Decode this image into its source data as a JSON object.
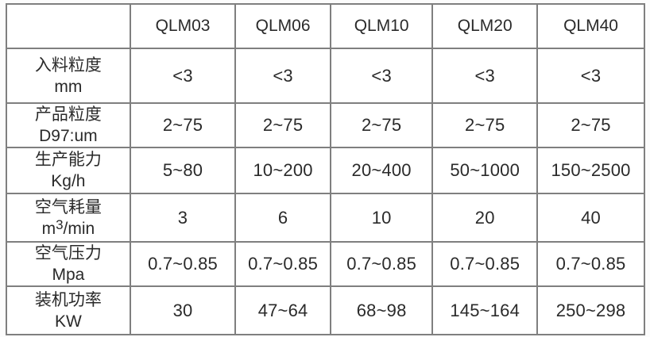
{
  "table": {
    "corner_label": "",
    "models": [
      "QLM03",
      "QLM06",
      "QLM10",
      "QLM20",
      "QLM40"
    ],
    "rows": [
      {
        "label_line1": "入料粒度",
        "label_line2": "mm",
        "values": [
          "<3",
          "<3",
          "<3",
          "<3",
          "<3"
        ]
      },
      {
        "label_line1": "产品粒度",
        "label_line2": "D97:um",
        "values": [
          "2~75",
          "2~75",
          "2~75",
          "2~75",
          "2~75"
        ]
      },
      {
        "label_line1": "生产能力",
        "label_line2": "Kg/h",
        "values": [
          "5~80",
          "10~200",
          "20~400",
          "50~1000",
          "150~2500"
        ]
      },
      {
        "label_line1": "空气耗量",
        "label2_parts": [
          "m",
          "3",
          "/min"
        ],
        "values": [
          "3",
          "6",
          "10",
          "20",
          "40"
        ]
      },
      {
        "label_line1": "空气压力",
        "label_line2": "Mpa",
        "values": [
          "0.7~0.85",
          "0.7~0.85",
          "0.7~0.85",
          "0.7~0.85",
          "0.7~0.85"
        ]
      },
      {
        "label_line1": "装机功率",
        "label_line2": "KW",
        "values": [
          "30",
          "47~64",
          "68~98",
          "145~164",
          "250~298"
        ]
      }
    ]
  }
}
